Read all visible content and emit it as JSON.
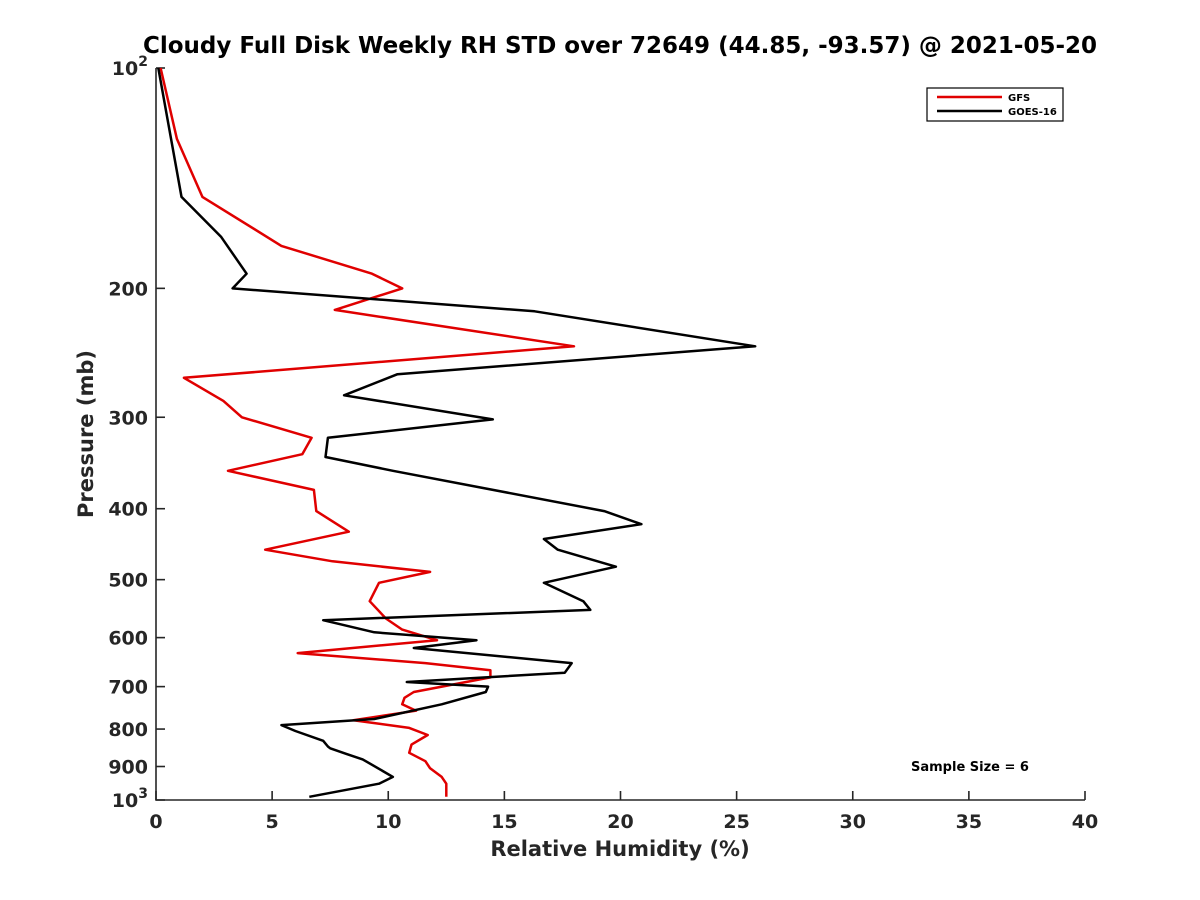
{
  "chart_data": {
    "type": "line",
    "title": "Cloudy Full Disk Weekly RH STD over 72649 (44.85, -93.57) @ 2021-05-20",
    "xlabel": "Relative Humidity (%)",
    "ylabel": "Pressure (mb)",
    "xlim": [
      0,
      40
    ],
    "ylim": [
      100,
      1000
    ],
    "y_scale": "log",
    "y_reversed": true,
    "grid": false,
    "legend_position": "top-right",
    "x_ticks": [
      {
        "value": 0,
        "label": "0"
      },
      {
        "value": 5,
        "label": "5"
      },
      {
        "value": 10,
        "label": "10"
      },
      {
        "value": 15,
        "label": "15"
      },
      {
        "value": 20,
        "label": "20"
      },
      {
        "value": 25,
        "label": "25"
      },
      {
        "value": 30,
        "label": "30"
      },
      {
        "value": 35,
        "label": "35"
      },
      {
        "value": 40,
        "label": "40"
      }
    ],
    "y_ticks": [
      {
        "value": 100,
        "label": "10",
        "sup": "2"
      },
      {
        "value": 200,
        "label": "200"
      },
      {
        "value": 300,
        "label": "300"
      },
      {
        "value": 400,
        "label": "400"
      },
      {
        "value": 500,
        "label": "500"
      },
      {
        "value": 600,
        "label": "600"
      },
      {
        "value": 700,
        "label": "700"
      },
      {
        "value": 800,
        "label": "800"
      },
      {
        "value": 900,
        "label": "900"
      },
      {
        "value": 1000,
        "label": "10",
        "sup": "3"
      }
    ],
    "annotation": "Sample Size = 6",
    "series": [
      {
        "name": "GFS",
        "color": "#e00000",
        "points": [
          [
            0.2,
            100
          ],
          [
            0.9,
            125
          ],
          [
            2.0,
            150
          ],
          [
            5.4,
            175
          ],
          [
            9.3,
            191
          ],
          [
            10.6,
            200
          ],
          [
            7.7,
            214
          ],
          [
            18.0,
            240
          ],
          [
            1.2,
            265
          ],
          [
            2.9,
            285
          ],
          [
            3.7,
            300
          ],
          [
            6.7,
            320
          ],
          [
            6.3,
            337
          ],
          [
            3.1,
            355
          ],
          [
            6.8,
            377
          ],
          [
            6.9,
            403
          ],
          [
            8.3,
            430
          ],
          [
            4.7,
            455
          ],
          [
            7.6,
            472
          ],
          [
            11.8,
            488
          ],
          [
            9.6,
            505
          ],
          [
            9.2,
            535
          ],
          [
            9.9,
            565
          ],
          [
            10.6,
            585
          ],
          [
            12.1,
            605
          ],
          [
            6.1,
            630
          ],
          [
            11.6,
            650
          ],
          [
            14.4,
            665
          ],
          [
            14.4,
            680
          ],
          [
            11.1,
            712
          ],
          [
            10.7,
            725
          ],
          [
            10.6,
            740
          ],
          [
            11.2,
            755
          ],
          [
            8.5,
            778
          ],
          [
            10.9,
            797
          ],
          [
            11.7,
            815
          ],
          [
            11.0,
            840
          ],
          [
            10.9,
            862
          ],
          [
            11.6,
            885
          ],
          [
            11.8,
            905
          ],
          [
            12.3,
            930
          ],
          [
            12.5,
            950
          ],
          [
            12.5,
            990
          ]
        ]
      },
      {
        "name": "GOES-16",
        "color": "#000000",
        "points": [
          [
            0.1,
            100
          ],
          [
            1.1,
            150
          ],
          [
            2.8,
            170
          ],
          [
            3.9,
            191
          ],
          [
            3.3,
            200
          ],
          [
            16.3,
            215
          ],
          [
            25.8,
            240
          ],
          [
            10.4,
            262
          ],
          [
            8.1,
            280
          ],
          [
            14.5,
            302
          ],
          [
            7.4,
            320
          ],
          [
            7.3,
            340
          ],
          [
            10.2,
            355
          ],
          [
            19.3,
            403
          ],
          [
            20.9,
            420
          ],
          [
            16.7,
            440
          ],
          [
            17.3,
            455
          ],
          [
            19.8,
            480
          ],
          [
            16.7,
            505
          ],
          [
            18.4,
            535
          ],
          [
            18.7,
            550
          ],
          [
            7.2,
            568
          ],
          [
            9.4,
            590
          ],
          [
            13.8,
            605
          ],
          [
            11.1,
            620
          ],
          [
            17.9,
            650
          ],
          [
            17.6,
            670
          ],
          [
            10.8,
            690
          ],
          [
            14.3,
            700
          ],
          [
            14.2,
            712
          ],
          [
            12.3,
            740
          ],
          [
            9.4,
            775
          ],
          [
            5.4,
            790
          ],
          [
            6.0,
            805
          ],
          [
            7.2,
            830
          ],
          [
            7.4,
            845
          ],
          [
            7.5,
            850
          ],
          [
            8.2,
            865
          ],
          [
            8.9,
            880
          ],
          [
            10.2,
            930
          ],
          [
            9.6,
            950
          ],
          [
            6.6,
            990
          ]
        ]
      }
    ]
  }
}
